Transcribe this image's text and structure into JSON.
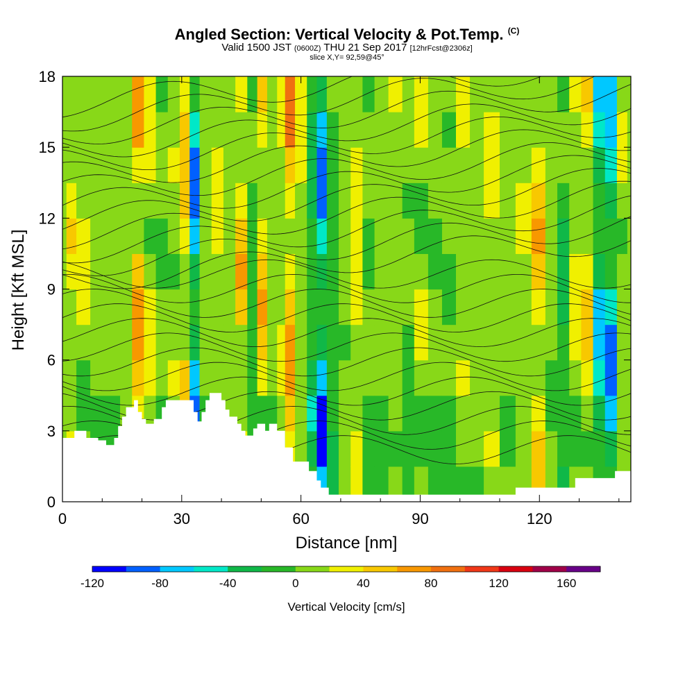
{
  "header": {
    "title": "Angled Section: Vertical Velocity & Pot.Temp.",
    "title_tag": "(C)",
    "valid_prefix": "Valid 1500 JST",
    "valid_utc": "(0600Z)",
    "valid_date": "THU 21 Sep 2017",
    "forecast_info": "[12hrFcst@2306z]",
    "slice_info": "slice X,Y= 92,59@45°"
  },
  "chart_data": {
    "type": "heatmap",
    "xlabel": "Distance [nm]",
    "ylabel": "Height [Kft MSL]",
    "xlim": [
      0,
      143
    ],
    "ylim": [
      0,
      18
    ],
    "x_ticks": [
      0,
      30,
      60,
      90,
      120
    ],
    "y_ticks": [
      0,
      3,
      6,
      9,
      12,
      15,
      18
    ],
    "x_tick_labels": [
      "0",
      "30",
      "60",
      "90",
      "120"
    ],
    "y_tick_labels": [
      "0",
      "3",
      "6",
      "9",
      "12",
      "15",
      "18"
    ],
    "colorbar": {
      "label": "Vertical Velocity [cm/s]",
      "min": -120,
      "max": 180,
      "step": 20,
      "tick_values": [
        -120,
        -80,
        -40,
        0,
        40,
        80,
        120,
        160
      ],
      "tick_labels": [
        "-120",
        "-80",
        "-40",
        "0",
        "40",
        "80",
        "120",
        "160"
      ],
      "colors": [
        "#0000ff",
        "#0060ff",
        "#00c8ff",
        "#00e8c8",
        "#10b848",
        "#28b828",
        "#88d818",
        "#f0f000",
        "#f8c800",
        "#f89800",
        "#f07010",
        "#f03818",
        "#d80010",
        "#a00048",
        "#680088"
      ]
    },
    "velocity_columns": [
      {
        "x": 2,
        "v": 40
      },
      {
        "x": 5,
        "v": 30
      },
      {
        "x": 9,
        "v": 10
      },
      {
        "x": 13,
        "v": 20
      },
      {
        "x": 16,
        "v": 10
      },
      {
        "x": 19,
        "v": 70
      },
      {
        "x": 22,
        "v": 30
      },
      {
        "x": 25,
        "v": 0
      },
      {
        "x": 28,
        "v": 20
      },
      {
        "x": 31,
        "v": 50
      },
      {
        "x": 33,
        "v": -90
      },
      {
        "x": 36,
        "v": 10
      },
      {
        "x": 39,
        "v": 30
      },
      {
        "x": 42,
        "v": 10
      },
      {
        "x": 45,
        "v": 60
      },
      {
        "x": 48,
        "v": -20
      },
      {
        "x": 50,
        "v": 60
      },
      {
        "x": 53,
        "v": 10
      },
      {
        "x": 55,
        "v": 30
      },
      {
        "x": 57,
        "v": 80
      },
      {
        "x": 60,
        "v": 20
      },
      {
        "x": 63,
        "v": -30
      },
      {
        "x": 65,
        "v": -100
      },
      {
        "x": 68,
        "v": -20
      },
      {
        "x": 71,
        "v": 10
      },
      {
        "x": 74,
        "v": 40
      },
      {
        "x": 77,
        "v": 0
      },
      {
        "x": 80,
        "v": 10
      },
      {
        "x": 84,
        "v": 20
      },
      {
        "x": 87,
        "v": 0
      },
      {
        "x": 90,
        "v": 20
      },
      {
        "x": 94,
        "v": 10
      },
      {
        "x": 97,
        "v": 0
      },
      {
        "x": 101,
        "v": 20
      },
      {
        "x": 104,
        "v": 10
      },
      {
        "x": 108,
        "v": 30
      },
      {
        "x": 112,
        "v": 10
      },
      {
        "x": 116,
        "v": 20
      },
      {
        "x": 120,
        "v": 60
      },
      {
        "x": 123,
        "v": 10
      },
      {
        "x": 126,
        "v": -30
      },
      {
        "x": 129,
        "v": 30
      },
      {
        "x": 132,
        "v": 50
      },
      {
        "x": 135,
        "v": -70
      },
      {
        "x": 138,
        "v": -90
      },
      {
        "x": 141,
        "v": 20
      }
    ],
    "terrain": [
      {
        "x": 0,
        "h": 2.7
      },
      {
        "x": 3,
        "h": 3.0
      },
      {
        "x": 6,
        "h": 2.7
      },
      {
        "x": 9,
        "h": 2.6
      },
      {
        "x": 11,
        "h": 2.4
      },
      {
        "x": 13,
        "h": 2.7
      },
      {
        "x": 14,
        "h": 3.2
      },
      {
        "x": 15,
        "h": 3.6
      },
      {
        "x": 16,
        "h": 4.0
      },
      {
        "x": 18,
        "h": 4.3
      },
      {
        "x": 19,
        "h": 3.8
      },
      {
        "x": 20,
        "h": 3.5
      },
      {
        "x": 21,
        "h": 3.3
      },
      {
        "x": 23,
        "h": 3.5
      },
      {
        "x": 25,
        "h": 4.0
      },
      {
        "x": 26,
        "h": 4.3
      },
      {
        "x": 30,
        "h": 4.3
      },
      {
        "x": 33,
        "h": 3.8
      },
      {
        "x": 34,
        "h": 3.4
      },
      {
        "x": 35,
        "h": 3.8
      },
      {
        "x": 36,
        "h": 4.3
      },
      {
        "x": 37,
        "h": 4.6
      },
      {
        "x": 40,
        "h": 4.3
      },
      {
        "x": 41,
        "h": 3.9
      },
      {
        "x": 42,
        "h": 3.6
      },
      {
        "x": 44,
        "h": 3.3
      },
      {
        "x": 45,
        "h": 3.0
      },
      {
        "x": 46,
        "h": 2.8
      },
      {
        "x": 48,
        "h": 3.1
      },
      {
        "x": 49,
        "h": 3.3
      },
      {
        "x": 51,
        "h": 3.0
      },
      {
        "x": 52,
        "h": 3.3
      },
      {
        "x": 54,
        "h": 3.0
      },
      {
        "x": 56,
        "h": 2.3
      },
      {
        "x": 58,
        "h": 1.7
      },
      {
        "x": 61,
        "h": 1.7
      },
      {
        "x": 62,
        "h": 1.3
      },
      {
        "x": 64,
        "h": 0.9
      },
      {
        "x": 65,
        "h": 0.6
      },
      {
        "x": 67,
        "h": 0.3
      },
      {
        "x": 78,
        "h": 0.3
      },
      {
        "x": 113,
        "h": 0.3
      },
      {
        "x": 114,
        "h": 0.6
      },
      {
        "x": 128,
        "h": 0.6
      },
      {
        "x": 129,
        "h": 1.0
      },
      {
        "x": 138,
        "h": 1.0
      },
      {
        "x": 139,
        "h": 1.3
      },
      {
        "x": 143,
        "h": 1.3
      }
    ]
  }
}
